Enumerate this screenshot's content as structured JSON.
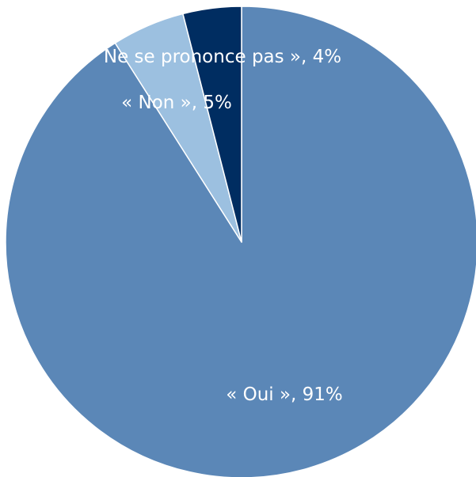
{
  "chart_data": {
    "type": "pie",
    "title": "",
    "start_angle_deg": 0,
    "direction": "clockwise",
    "slices": [
      {
        "key": "oui",
        "label": "« Oui », 91%",
        "value": 91,
        "color": "#5b87b7"
      },
      {
        "key": "non",
        "label": "« Non », 5%",
        "value": 5,
        "color": "#9cc0e0"
      },
      {
        "key": "nspp",
        "label": "Ne se prononce pas », 4%",
        "value": 4,
        "color": "#002d61"
      }
    ],
    "legend": "none",
    "slice_borders": "white"
  }
}
